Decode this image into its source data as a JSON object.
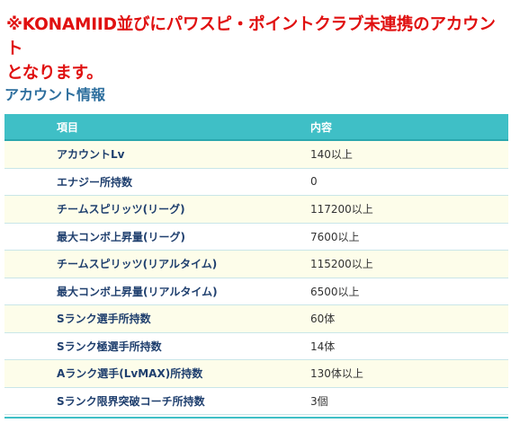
{
  "notice": {
    "line1": "※KONAMIID並びにパワスピ・ポイントクラブ未連携のアカウント",
    "line2": "となります。"
  },
  "section": {
    "title": "アカウント情報"
  },
  "table": {
    "headers": {
      "item": "項目",
      "value": "内容"
    },
    "rows": [
      {
        "item": "アカウントLv",
        "value": "140以上"
      },
      {
        "item": "エナジー所持数",
        "value": "0"
      },
      {
        "item": "チームスピリッツ(リーグ)",
        "value": "117200以上"
      },
      {
        "item": "最大コンボ上昇量(リーグ)",
        "value": "7600以上"
      },
      {
        "item": "チームスピリッツ(リアルタイム)",
        "value": "115200以上"
      },
      {
        "item": "最大コンボ上昇量(リアルタイム)",
        "value": "6500以上"
      },
      {
        "item": "Sランク選手所持数",
        "value": "60体"
      },
      {
        "item": "Sランク極選手所持数",
        "value": "14体"
      },
      {
        "item": "Aランク選手(LvMAX)所持数",
        "value": "130体以上"
      },
      {
        "item": "Sランク限界突破コーチ所持数",
        "value": "3個"
      }
    ]
  },
  "colors": {
    "notice": "#e01010",
    "section_title": "#2e6f9e",
    "header_bg": "#3fbfc6",
    "row_alt": "#fdfdea",
    "item_text": "#1f3f6e"
  }
}
